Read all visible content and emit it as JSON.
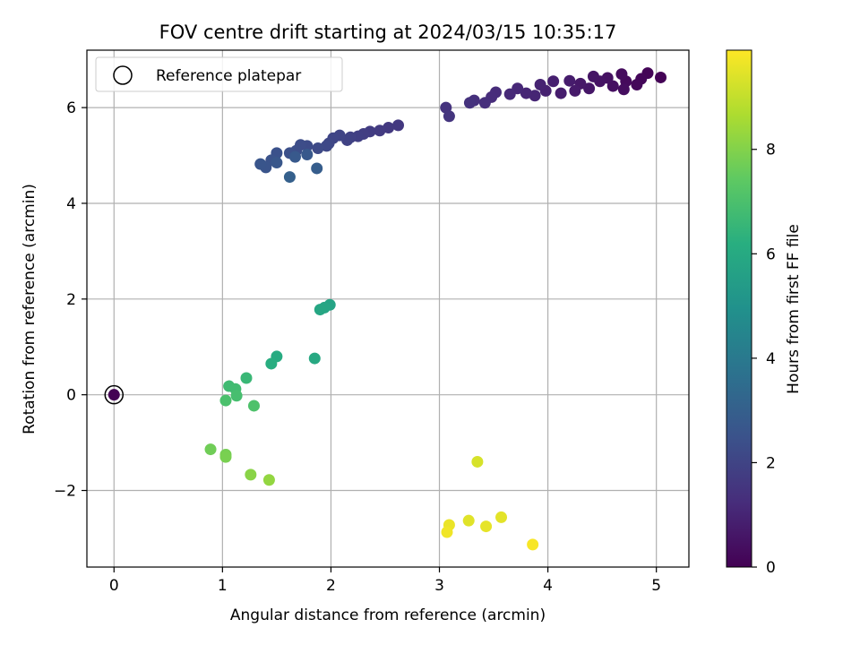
{
  "chart_data": {
    "type": "scatter",
    "title": "FOV centre drift starting at 2024/03/15 10:35:17",
    "xlabel": "Angular distance from reference (arcmin)",
    "ylabel": "Rotation from reference (arcmin)",
    "xlim": [
      -0.25,
      5.3
    ],
    "ylim": [
      -3.6,
      7.2
    ],
    "x_ticks": [
      0,
      1,
      2,
      3,
      4,
      5
    ],
    "x_tick_labels": [
      "0",
      "1",
      "2",
      "3",
      "4",
      "5"
    ],
    "y_ticks": [
      -2,
      0,
      2,
      4,
      6
    ],
    "y_tick_labels": [
      "−2",
      "0",
      "2",
      "4",
      "6"
    ],
    "grid": true,
    "legend": {
      "placement": "upper-left",
      "entries": [
        "Reference platepar"
      ]
    },
    "colorbar": {
      "label": "Hours from first FF file",
      "colormap": "viridis",
      "range": [
        0,
        9.9
      ],
      "ticks": [
        0,
        2,
        4,
        6,
        8
      ],
      "tick_labels": [
        "0",
        "2",
        "4",
        "6",
        "8"
      ]
    },
    "reference_point": {
      "x": 0,
      "y": 0
    },
    "points": [
      {
        "x": 0,
        "y": 0,
        "t": 0.0
      },
      {
        "x": 4.92,
        "y": 6.72,
        "t": 0.1
      },
      {
        "x": 5.04,
        "y": 6.63,
        "t": 0.05
      },
      {
        "x": 4.86,
        "y": 6.6,
        "t": 0.15
      },
      {
        "x": 4.82,
        "y": 6.48,
        "t": 0.2
      },
      {
        "x": 4.72,
        "y": 6.55,
        "t": 0.25
      },
      {
        "x": 4.68,
        "y": 6.7,
        "t": 0.3
      },
      {
        "x": 4.7,
        "y": 6.38,
        "t": 0.35
      },
      {
        "x": 4.6,
        "y": 6.45,
        "t": 0.4
      },
      {
        "x": 4.55,
        "y": 6.62,
        "t": 0.45
      },
      {
        "x": 4.48,
        "y": 6.55,
        "t": 0.5
      },
      {
        "x": 4.42,
        "y": 6.65,
        "t": 0.55
      },
      {
        "x": 4.38,
        "y": 6.4,
        "t": 0.6
      },
      {
        "x": 4.3,
        "y": 6.5,
        "t": 0.65
      },
      {
        "x": 4.25,
        "y": 6.35,
        "t": 0.7
      },
      {
        "x": 4.2,
        "y": 6.56,
        "t": 0.75
      },
      {
        "x": 4.12,
        "y": 6.3,
        "t": 0.8
      },
      {
        "x": 4.05,
        "y": 6.55,
        "t": 0.85
      },
      {
        "x": 3.98,
        "y": 6.35,
        "t": 0.9
      },
      {
        "x": 3.93,
        "y": 6.48,
        "t": 0.95
      },
      {
        "x": 3.88,
        "y": 6.25,
        "t": 1.0
      },
      {
        "x": 3.8,
        "y": 6.3,
        "t": 1.05
      },
      {
        "x": 3.72,
        "y": 6.4,
        "t": 1.1
      },
      {
        "x": 3.65,
        "y": 6.28,
        "t": 1.15
      },
      {
        "x": 3.52,
        "y": 6.32,
        "t": 1.2
      },
      {
        "x": 3.48,
        "y": 6.22,
        "t": 1.25
      },
      {
        "x": 3.42,
        "y": 6.1,
        "t": 1.3
      },
      {
        "x": 3.32,
        "y": 6.15,
        "t": 1.35
      },
      {
        "x": 3.28,
        "y": 6.1,
        "t": 1.4
      },
      {
        "x": 3.06,
        "y": 6.0,
        "t": 1.45
      },
      {
        "x": 3.09,
        "y": 5.82,
        "t": 1.5
      },
      {
        "x": 2.62,
        "y": 5.63,
        "t": 1.6
      },
      {
        "x": 2.53,
        "y": 5.58,
        "t": 1.65
      },
      {
        "x": 2.45,
        "y": 5.52,
        "t": 1.7
      },
      {
        "x": 2.36,
        "y": 5.5,
        "t": 1.75
      },
      {
        "x": 2.3,
        "y": 5.45,
        "t": 1.8
      },
      {
        "x": 2.25,
        "y": 5.4,
        "t": 1.85
      },
      {
        "x": 2.18,
        "y": 5.38,
        "t": 1.9
      },
      {
        "x": 2.15,
        "y": 5.32,
        "t": 1.95
      },
      {
        "x": 2.08,
        "y": 5.42,
        "t": 2.0
      },
      {
        "x": 2.02,
        "y": 5.36,
        "t": 2.05
      },
      {
        "x": 1.98,
        "y": 5.25,
        "t": 2.1
      },
      {
        "x": 1.96,
        "y": 5.2,
        "t": 2.15
      },
      {
        "x": 1.88,
        "y": 5.15,
        "t": 2.2
      },
      {
        "x": 1.78,
        "y": 5.2,
        "t": 2.25
      },
      {
        "x": 1.72,
        "y": 5.22,
        "t": 2.3
      },
      {
        "x": 1.68,
        "y": 5.1,
        "t": 2.35
      },
      {
        "x": 1.62,
        "y": 5.05,
        "t": 2.4
      },
      {
        "x": 1.5,
        "y": 5.05,
        "t": 2.45
      },
      {
        "x": 1.45,
        "y": 4.9,
        "t": 2.5
      },
      {
        "x": 1.4,
        "y": 4.75,
        "t": 2.55
      },
      {
        "x": 1.35,
        "y": 4.82,
        "t": 2.6
      },
      {
        "x": 1.5,
        "y": 4.85,
        "t": 2.65
      },
      {
        "x": 1.78,
        "y": 5.02,
        "t": 2.7
      },
      {
        "x": 1.67,
        "y": 4.97,
        "t": 2.75
      },
      {
        "x": 1.87,
        "y": 4.73,
        "t": 2.9
      },
      {
        "x": 1.62,
        "y": 4.55,
        "t": 3.0
      },
      {
        "x": 1.99,
        "y": 1.88,
        "t": 5.7
      },
      {
        "x": 1.94,
        "y": 1.82,
        "t": 5.8
      },
      {
        "x": 1.9,
        "y": 1.78,
        "t": 5.85
      },
      {
        "x": 1.85,
        "y": 0.76,
        "t": 5.95
      },
      {
        "x": 1.5,
        "y": 0.8,
        "t": 6.05
      },
      {
        "x": 1.45,
        "y": 0.65,
        "t": 6.15
      },
      {
        "x": 1.22,
        "y": 0.35,
        "t": 6.6
      },
      {
        "x": 1.06,
        "y": 0.18,
        "t": 6.75
      },
      {
        "x": 1.12,
        "y": 0.12,
        "t": 6.8
      },
      {
        "x": 1.13,
        "y": -0.02,
        "t": 6.9
      },
      {
        "x": 1.03,
        "y": -0.12,
        "t": 7.0
      },
      {
        "x": 1.29,
        "y": -0.23,
        "t": 7.05
      },
      {
        "x": 0.89,
        "y": -1.14,
        "t": 7.7
      },
      {
        "x": 1.03,
        "y": -1.25,
        "t": 7.8
      },
      {
        "x": 1.03,
        "y": -1.3,
        "t": 7.85
      },
      {
        "x": 1.26,
        "y": -1.67,
        "t": 8.1
      },
      {
        "x": 1.43,
        "y": -1.78,
        "t": 8.25
      },
      {
        "x": 3.35,
        "y": -1.4,
        "t": 9.3
      },
      {
        "x": 3.27,
        "y": -2.63,
        "t": 9.45
      },
      {
        "x": 3.57,
        "y": -2.56,
        "t": 9.5
      },
      {
        "x": 3.43,
        "y": -2.75,
        "t": 9.55
      },
      {
        "x": 3.09,
        "y": -2.72,
        "t": 9.6
      },
      {
        "x": 3.07,
        "y": -2.87,
        "t": 9.7
      },
      {
        "x": 3.86,
        "y": -3.13,
        "t": 9.8
      }
    ]
  }
}
